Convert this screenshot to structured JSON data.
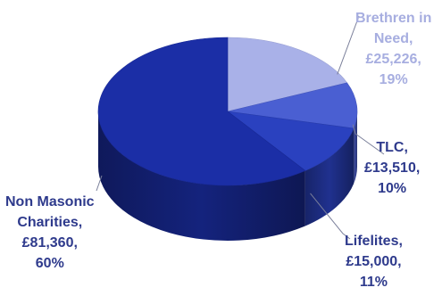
{
  "chart_data": {
    "type": "pie",
    "title": "",
    "slices": [
      {
        "name": "Brethren in Need",
        "label_lines": [
          "Brethren in",
          "Need,",
          "£25,226,",
          "19%"
        ],
        "value": 25226,
        "percent": 19,
        "color": "#a9b1e8",
        "label_color": "#a7aee0"
      },
      {
        "name": "TLC",
        "label_lines": [
          "TLC,",
          "£13,510,",
          "10%"
        ],
        "value": 13510,
        "percent": 10,
        "color": "#4a5fd2",
        "label_color": "#2e3a8c"
      },
      {
        "name": "Lifelites",
        "label_lines": [
          "Lifelites,",
          "£15,000,",
          "11%"
        ],
        "value": 15000,
        "percent": 11,
        "color": "#2a41bf",
        "label_color": "#2e3a8c"
      },
      {
        "name": "Non Masonic Charities",
        "label_lines": [
          "Non Masonic",
          "Charities,",
          "£81,360,",
          "60%"
        ],
        "value": 81360,
        "percent": 60,
        "color": "#1b2ea6",
        "label_color": "#2e3a8c"
      }
    ],
    "style": "3d-pie",
    "legend": "none",
    "labels_placement": "outside-with-leader-lines"
  }
}
